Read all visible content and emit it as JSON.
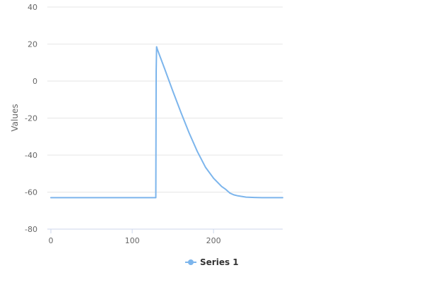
{
  "chart_data": {
    "type": "line",
    "title": "",
    "xlabel": "",
    "ylabel": "Values",
    "xlim": [
      0,
      285
    ],
    "ylim": [
      -80,
      40
    ],
    "x_ticks": [
      0,
      100,
      200
    ],
    "y_ticks": [
      40,
      20,
      0,
      -20,
      -40,
      -60,
      -80
    ],
    "grid": true,
    "legend": "bottom-center",
    "series": [
      {
        "name": "Series 1",
        "color": "#7cb5ec",
        "x": [
          0,
          129,
          129.5,
          130,
          131,
          140,
          150,
          160,
          170,
          180,
          190,
          200,
          210,
          215,
          220,
          225,
          230,
          240,
          250,
          260,
          285
        ],
        "y": [
          -63,
          -63,
          5,
          18.5,
          17,
          6.5,
          -5.5,
          -17,
          -28,
          -38,
          -46.5,
          -52.5,
          -57,
          -58.5,
          -60.5,
          -61.5,
          -62,
          -62.7,
          -62.9,
          -63,
          -63
        ]
      }
    ]
  }
}
